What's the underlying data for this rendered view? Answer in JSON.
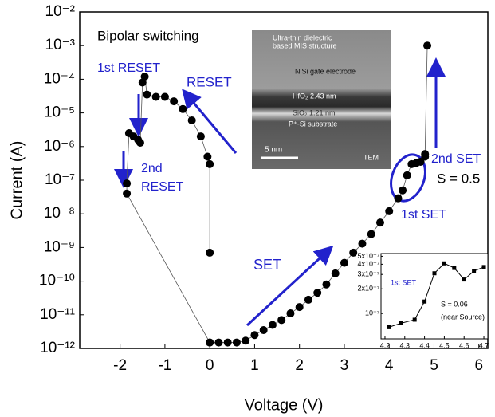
{
  "chart_data": [
    {
      "type": "scatter",
      "log_y": true,
      "xlabel": "Voltage (V)",
      "ylabel": "Current (A)",
      "xlim": [
        -2.9,
        6.2
      ],
      "ylim": [
        1e-12,
        0.01
      ],
      "xticks": [
        -2,
        -1,
        0,
        1,
        2,
        3,
        4,
        5,
        6
      ],
      "yticks": [
        {
          "value": 1e-12,
          "label": "10⁻¹²"
        },
        {
          "value": 1e-11,
          "label": "10⁻¹¹"
        },
        {
          "value": 1e-10,
          "label": "10⁻¹⁰"
        },
        {
          "value": 1e-09,
          "label": "10⁻⁹"
        },
        {
          "value": 1e-08,
          "label": "10⁻⁸"
        },
        {
          "value": 1e-07,
          "label": "10⁻⁷"
        },
        {
          "value": 1e-06,
          "label": "10⁻⁶"
        },
        {
          "value": 1e-05,
          "label": "10⁻⁵"
        },
        {
          "value": 0.0001,
          "label": "10⁻⁴"
        },
        {
          "value": 0.001,
          "label": "10⁻³"
        },
        {
          "value": 0.01,
          "label": "10⁻²"
        }
      ],
      "series": [
        {
          "color": "#000000",
          "x": [
            0,
            0.2,
            0.4,
            0.6,
            0.8,
            1.0,
            1.2,
            1.4,
            1.6,
            1.8,
            2.0,
            2.2,
            2.4,
            2.6,
            2.8,
            3.0,
            3.2,
            3.4,
            3.6,
            3.8,
            4.0,
            4.2,
            4.3,
            4.4,
            4.5,
            4.6,
            4.7,
            4.8,
            4.85,
            4.8
          ],
          "values": [
            1.5e-12,
            1.5e-12,
            1.5e-12,
            1.5e-12,
            1.7e-12,
            2.5e-12,
            3.5e-12,
            5e-12,
            7e-12,
            1.1e-11,
            1.7e-11,
            2.8e-11,
            4.5e-11,
            8e-11,
            1.7e-10,
            3.5e-10,
            7e-10,
            1.3e-09,
            2.5e-09,
            5.5e-09,
            1.2e-08,
            2.9e-08,
            5e-08,
            1.4e-07,
            3e-07,
            3.2e-07,
            3.5e-07,
            5e-07,
            0.001,
            6e-07
          ]
        },
        {
          "color": "#000000",
          "x": [
            0,
            -1.85,
            -1.85,
            -1.8,
            -1.7,
            -1.6,
            -1.55,
            -1.5,
            -1.45,
            -1.4,
            -1.2,
            -1.0,
            -0.8,
            -0.6,
            -0.4,
            -0.2,
            -0.05,
            0,
            0
          ],
          "values": [
            1.5e-12,
            4e-08,
            8e-08,
            2.5e-06,
            2e-06,
            1.6e-06,
            1.3e-06,
            8e-05,
            0.00012,
            3.5e-05,
            3e-05,
            3e-05,
            2.2e-05,
            1.3e-05,
            6e-06,
            2e-06,
            5e-07,
            3e-07,
            7e-10
          ]
        }
      ],
      "annotations": [
        "Bipolar switching",
        "1st RESET",
        "RESET",
        "2nd",
        "RESET",
        "SET",
        "1st SET",
        "2nd SET",
        "S = 0.5",
        "Ultra-thin dielectric",
        "based MIS structure",
        "NiSi gate electrode",
        "HfO₂ 2.43 nm",
        "SiO₂ 1.21 nm",
        "P⁺-Si substrate",
        "5 nm",
        "TEM"
      ]
    },
    {
      "type": "line",
      "log_y": true,
      "xlim": [
        4.18,
        4.72
      ],
      "ylim": [
        4.9e-08,
        5.4e-07
      ],
      "xticks": [
        4.2,
        4.3,
        4.4,
        4.5,
        4.6,
        4.7
      ],
      "yticks": [
        {
          "value": 5e-07,
          "label": "5x10⁻⁷"
        },
        {
          "value": 4e-07,
          "label": "4x10⁻⁷"
        },
        {
          "value": 3e-07,
          "label": "3x10⁻⁷"
        },
        {
          "value": 2e-07,
          "label": "2x10⁻⁷"
        },
        {
          "value": 1e-07,
          "label": "10⁻⁷"
        }
      ],
      "series": [
        {
          "color": "#000000",
          "x": [
            4.22,
            4.28,
            4.35,
            4.4,
            4.45,
            4.5,
            4.55,
            4.6,
            4.65,
            4.7
          ],
          "values": [
            6.8e-08,
            7.6e-08,
            8.4e-08,
            1.4e-07,
            3.1e-07,
            4.1e-07,
            3.6e-07,
            2.6e-07,
            3.3e-07,
            3.7e-07
          ]
        }
      ],
      "annotations": [
        "1st SET",
        "S = 0.06",
        "(near Source)"
      ]
    }
  ]
}
